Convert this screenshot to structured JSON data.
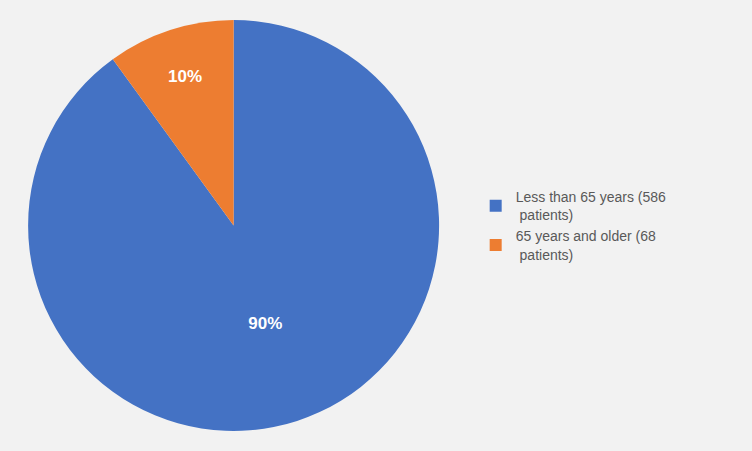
{
  "chart_data": {
    "type": "pie",
    "categories": [
      "Less than 65 years (586\n patients)",
      "65 years and older (68\n patients)"
    ],
    "values": [
      90,
      10
    ],
    "value_labels": [
      "90%",
      "10%"
    ],
    "colors": [
      "#4472C4",
      "#ED7D31"
    ],
    "data_labels": true,
    "legend": "right"
  }
}
